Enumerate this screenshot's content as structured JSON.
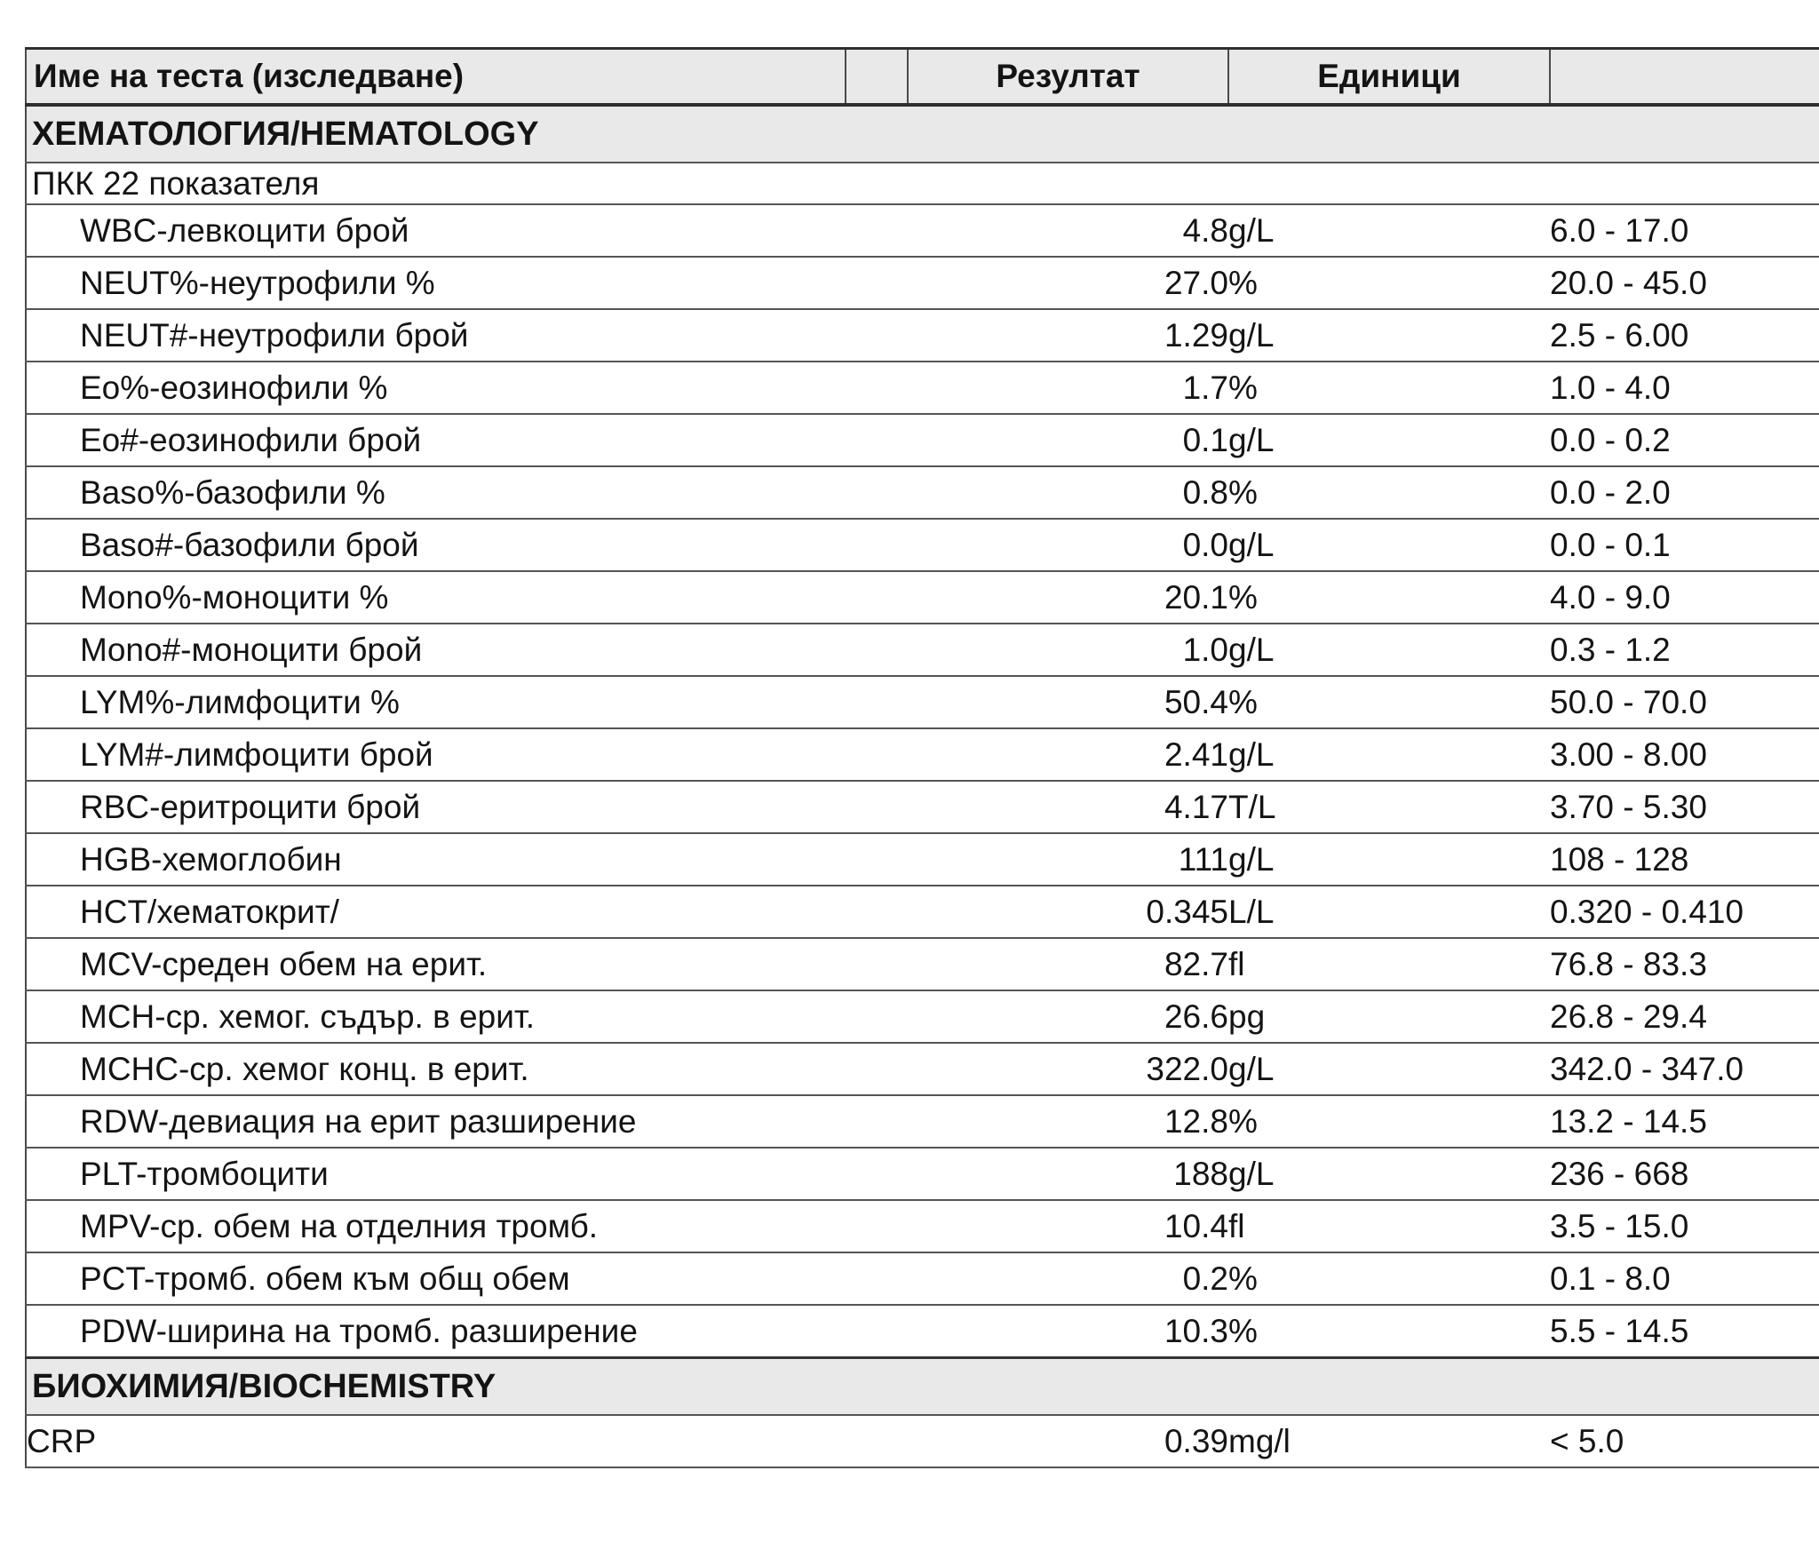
{
  "page": {
    "background": "#ffffff"
  },
  "table": {
    "header_bg": "#e9e9e9",
    "section_bg": "#e9e9e9",
    "border_color": "#4a4a4a",
    "heavy_border_color": "#2f2f2f",
    "text_color": "#141414",
    "columns": [
      "Име на теста (изследване)",
      "",
      "Резултат",
      "Единици",
      ""
    ],
    "sections": [
      {
        "title": "ХЕМАТОЛОГИЯ/HEMATOLOGY",
        "subtitle": "ПКК 22 показателя",
        "rows": [
          {
            "name": "WBC-левкоцити брой",
            "result": "4.8",
            "units": "g/L",
            "range": "6.0 - 17.0",
            "indent": true
          },
          {
            "name": "NEUT%-неутрофили %",
            "result": "27.0",
            "units": "%",
            "range": "20.0 - 45.0",
            "indent": true
          },
          {
            "name": "NEUT#-неутрофили брой",
            "result": "1.29",
            "units": "g/L",
            "range": "2.5 - 6.00",
            "indent": true
          },
          {
            "name": "Eo%-еозинофили %",
            "result": "1.7",
            "units": "%",
            "range": "1.0 - 4.0",
            "indent": true
          },
          {
            "name": "Eo#-еозинофили брой",
            "result": "0.1",
            "units": "g/L",
            "range": "0.0 - 0.2",
            "indent": true
          },
          {
            "name": "Baso%-базофили %",
            "result": "0.8",
            "units": "%",
            "range": "0.0 - 2.0",
            "indent": true
          },
          {
            "name": "Baso#-базофили брой",
            "result": "0.0",
            "units": "g/L",
            "range": "0.0 - 0.1",
            "indent": true
          },
          {
            "name": "Mono%-моноцити %",
            "result": "20.1",
            "units": "%",
            "range": "4.0 - 9.0",
            "indent": true
          },
          {
            "name": "Mono#-моноцити брой",
            "result": "1.0",
            "units": "g/L",
            "range": "0.3 - 1.2",
            "indent": true
          },
          {
            "name": "LYM%-лимфоцити %",
            "result": "50.4",
            "units": "%",
            "range": "50.0 - 70.0",
            "indent": true
          },
          {
            "name": "LYM#-лимфоцити брой",
            "result": "2.41",
            "units": "g/L",
            "range": "3.00 - 8.00",
            "indent": true
          },
          {
            "name": "RBC-еритроцити брой",
            "result": "4.17",
            "units": "T/L",
            "range": "3.70 - 5.30",
            "indent": true
          },
          {
            "name": "HGB-хемоглобин",
            "result": "111",
            "units": "g/L",
            "range": "108 - 128",
            "indent": true
          },
          {
            "name": "HCT/хематокрит/",
            "result": "0.345",
            "units": "L/L",
            "range": "0.320 - 0.410",
            "indent": true
          },
          {
            "name": "MCV-среден обем на ерит.",
            "result": "82.7",
            "units": "fl",
            "range": "76.8 - 83.3",
            "indent": true
          },
          {
            "name": "MCH-ср. хемог. съдър. в ерит.",
            "result": "26.6",
            "units": "pg",
            "range": "26.8 - 29.4",
            "indent": true
          },
          {
            "name": "MCHC-ср. хемог конц. в ерит.",
            "result": "322.0",
            "units": "g/L",
            "range": "342.0 - 347.0",
            "indent": true
          },
          {
            "name": "RDW-девиация на ерит разширение",
            "result": "12.8",
            "units": "%",
            "range": "13.2 - 14.5",
            "indent": true
          },
          {
            "name": "PLT-тромбоцити",
            "result": "188",
            "units": "g/L",
            "range": "236 - 668",
            "indent": true
          },
          {
            "name": "MPV-ср. обем на отделния тромб.",
            "result": "10.4",
            "units": "fl",
            "range": "3.5 - 15.0",
            "indent": true
          },
          {
            "name": "PCT-тромб. обем към общ обем",
            "result": "0.2",
            "units": "%",
            "range": "0.1 - 8.0",
            "indent": true
          },
          {
            "name": "PDW-ширина на тромб. разширение",
            "result": "10.3",
            "units": "%",
            "range": "5.5 - 14.5",
            "indent": true
          }
        ]
      },
      {
        "title": "БИОХИМИЯ/BIOCHEMISTRY",
        "subtitle": "",
        "rows": [
          {
            "name": "CRP",
            "result": "0.39",
            "units": "mg/l",
            "range": "< 5.0",
            "indent": false
          }
        ]
      }
    ]
  }
}
